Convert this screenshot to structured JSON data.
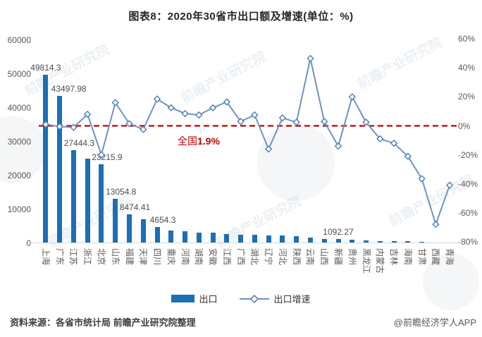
{
  "title": "图表8：2020年30省市出口额及增速(单位：%)",
  "annotation": {
    "prefix": "全国",
    "value": "1.9%"
  },
  "legend": {
    "bar_label": "出口",
    "line_label": "出口增速"
  },
  "footer": {
    "source": "资料来源：各省市统计局 前瞻产业研究院整理",
    "handle": "@前瞻经济学人APP"
  },
  "watermark": {
    "text": "前瞻产业研究院"
  },
  "chart_data": {
    "type": "bar",
    "title": "图表8：2020年30省市出口额及增速(单位：%)",
    "categories": [
      "上海",
      "广东",
      "江苏",
      "浙江",
      "北京",
      "山东",
      "福建",
      "天津",
      "四川",
      "重庆",
      "河南",
      "湖南",
      "安徽",
      "江西",
      "广西",
      "湖北",
      "辽宁",
      "河北",
      "陕西",
      "云南",
      "山西",
      "新疆",
      "贵州",
      "黑龙江",
      "内蒙古",
      "吉林",
      "海南",
      "甘肃",
      "西藏",
      "青海"
    ],
    "series": [
      {
        "name": "出口",
        "type": "bar",
        "axis": "left",
        "color": "#1a6fb5",
        "values": [
          49814.3,
          43497.98,
          27444.3,
          25000,
          23215.9,
          13054.8,
          8474.41,
          7100,
          4654.3,
          3600,
          3450,
          3000,
          2950,
          2600,
          2450,
          2350,
          2250,
          2100,
          2000,
          1500,
          1250,
          1092.27,
          850,
          750,
          600,
          550,
          500,
          280,
          120,
          90
        ]
      },
      {
        "name": "出口增速",
        "type": "line",
        "axis": "right",
        "color": "#6e93c4",
        "marker": "diamond-hollow",
        "values": [
          1,
          -0.5,
          -1,
          8,
          -20,
          16,
          1.5,
          -2.5,
          18.5,
          12.5,
          8.5,
          7.5,
          12.5,
          16.5,
          3,
          7.5,
          -16,
          5.5,
          2.5,
          46.5,
          3,
          -14,
          20,
          2.5,
          -9,
          -12,
          -21,
          -36.5,
          -68,
          -41
        ]
      }
    ],
    "data_labels": {
      "0": "49814.3",
      "1": "43497.98",
      "2": "27444.3",
      "4": "23215.9",
      "5": "13054.8",
      "6": "8474.41",
      "8": "4654.3",
      "21": "1092.27"
    },
    "reference_line": {
      "value": 1.9,
      "label": "全国1.9%",
      "color": "#c00000",
      "style": "dashed"
    },
    "left_axis": {
      "ticks": [
        "60000",
        "50000",
        "40000",
        "30000",
        "20000",
        "10000",
        "0"
      ],
      "range": [
        0,
        60000
      ]
    },
    "right_axis": {
      "ticks": [
        "60%",
        "40%",
        "20%",
        "0%",
        "-20%",
        "-40%",
        "-60%",
        "-80%"
      ],
      "range": [
        -80,
        60
      ]
    },
    "legend_position": "bottom",
    "grid": false
  }
}
